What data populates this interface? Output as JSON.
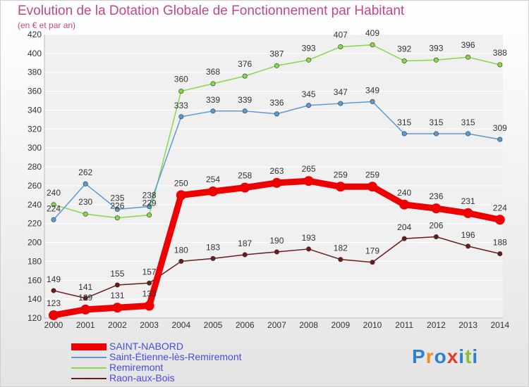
{
  "header": {
    "title": "Evolution de la Dotation Globale de Fonctionnement par Habitant",
    "subtitle": "(en € et par an)"
  },
  "logo": {
    "text": "Proxiti"
  },
  "colors": {
    "saint_nabord": "#ee0000",
    "saint_etienne": "#5b9bd5",
    "remiremont": "#88d84a",
    "raon": "#6b1a1a",
    "title": "#c0488a",
    "legend_text": "#4a4ae6"
  },
  "chart_data": {
    "type": "line",
    "title": "Evolution de la Dotation Globale de Fonctionnement par Habitant",
    "subtitle": "(en € et par an)",
    "xlabel": "",
    "ylabel": "",
    "x": [
      "2000",
      "2001",
      "2002",
      "2003",
      "2004",
      "2005",
      "2006",
      "2007",
      "2008",
      "2009",
      "2010",
      "2011",
      "2012",
      "2013",
      "2014"
    ],
    "ylim": [
      120,
      420
    ],
    "yticks": [
      120,
      140,
      160,
      180,
      200,
      220,
      240,
      260,
      280,
      300,
      320,
      340,
      360,
      380,
      400,
      420
    ],
    "grid": "horizontal",
    "legend_position": "bottom-left",
    "series": [
      {
        "name": "SAINT-NABORD",
        "color": "#ee0000",
        "values": [
          123,
          129,
          131,
          133,
          250,
          254,
          258,
          263,
          265,
          259,
          259,
          240,
          236,
          231,
          224
        ]
      },
      {
        "name": "Saint-Étienne-lès-Remiremont",
        "color": "#5b9bd5",
        "values": [
          224,
          262,
          235,
          238,
          333,
          339,
          339,
          336,
          345,
          347,
          349,
          315,
          315,
          315,
          309
        ]
      },
      {
        "name": "Remiremont",
        "color": "#88d84a",
        "values": [
          240,
          230,
          226,
          229,
          360,
          368,
          376,
          387,
          393,
          407,
          409,
          392,
          393,
          396,
          388
        ]
      },
      {
        "name": "Raon-aux-Bois",
        "color": "#6b1a1a",
        "values": [
          149,
          141,
          155,
          157,
          180,
          183,
          187,
          190,
          193,
          182,
          179,
          204,
          206,
          196,
          188
        ]
      }
    ]
  }
}
